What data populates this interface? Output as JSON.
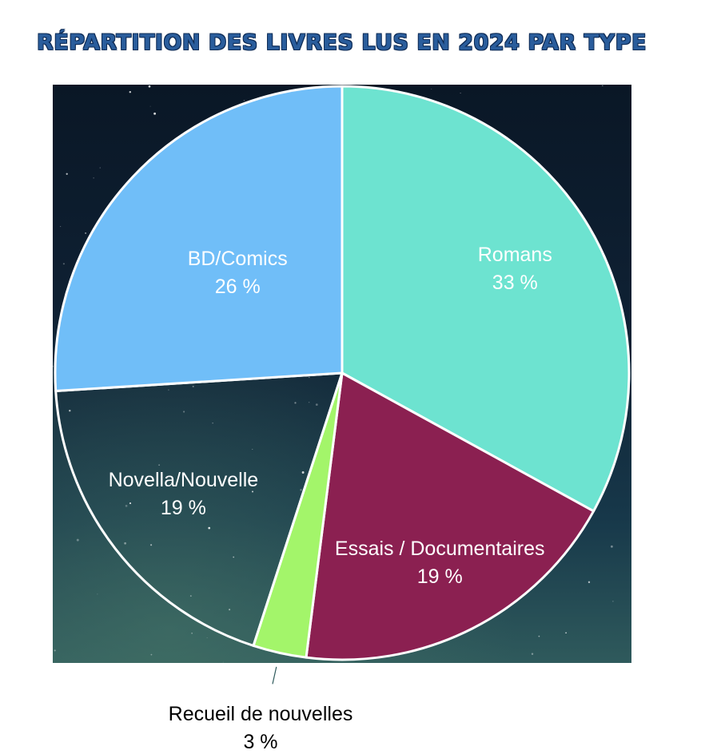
{
  "title": "RÉPARTITION DES LIVRES LUS EN 2024 PAR TYPE",
  "chart_data": {
    "type": "pie",
    "title": "RÉPARTITION DES LIVRES LUS EN 2024 PAR TYPE",
    "slices": [
      {
        "name": "Romans",
        "percent": "33 %",
        "value": 33,
        "color": "#6de3d0",
        "label_color": "#ffffff"
      },
      {
        "name": "Essais / Documentaires",
        "percent": "19 %",
        "value": 19,
        "color": "#8b2051",
        "label_color": "#ffffff"
      },
      {
        "name": "Recueil de nouvelles",
        "percent": "3 %",
        "value": 3,
        "color": "#a3f56a",
        "label_color": "#000000"
      },
      {
        "name": "Novella/Nouvelle",
        "percent": "19 %",
        "value": 19,
        "color": "#0f2236",
        "label_color": "#ffffff"
      },
      {
        "name": "BD/Comics",
        "percent": "26 %",
        "value": 26,
        "color": "#70bef8",
        "label_color": "#ffffff"
      }
    ],
    "start": "12 o'clock, clockwise",
    "slice_border_color": "#ffffff",
    "background": "starry night sky"
  }
}
